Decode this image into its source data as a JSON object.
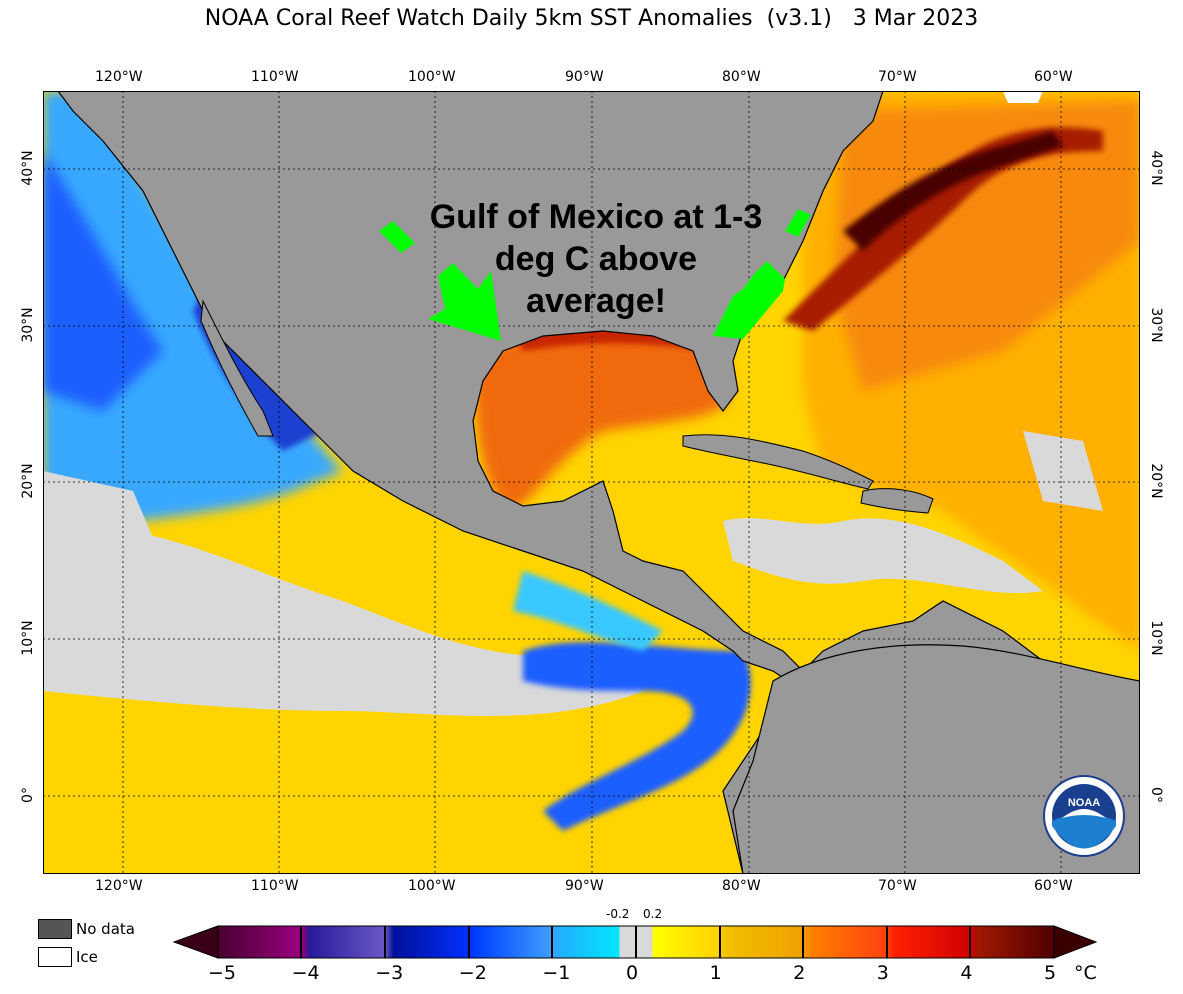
{
  "title": "NOAA Coral Reef Watch Daily 5km SST Anomalies  (v3.1)   3 Mar 2023",
  "annotation": {
    "line1": "Gulf of Mexico at 1-3",
    "line2": "deg C above",
    "line3": "average!"
  },
  "lon_labels": [
    "120°W",
    "110°W",
    "100°W",
    "90°W",
    "80°W",
    "70°W",
    "60°W"
  ],
  "lat_labels": [
    "40°N",
    "30°N",
    "20°N",
    "10°N",
    "0°"
  ],
  "legend": {
    "no_data": "No data",
    "ice": "Ice",
    "no_data_color": "#555555",
    "ice_color": "#ffffff"
  },
  "colorbar": {
    "ticks": [
      "−5",
      "−4",
      "−3",
      "−2",
      "−1",
      "0",
      "1",
      "2",
      "3",
      "4",
      "5"
    ],
    "small_ticks": [
      "-0.2",
      "0.2"
    ],
    "unit": "°C",
    "range": [
      -5,
      5
    ]
  },
  "colors": {
    "land": "#999999",
    "nodata_sea": "#d9d9d9",
    "arrow": "#00ff00",
    "warm": "#f07a10",
    "hot": "#5a0000",
    "cold": "#1f4fff"
  },
  "logo_text": "NOAA"
}
